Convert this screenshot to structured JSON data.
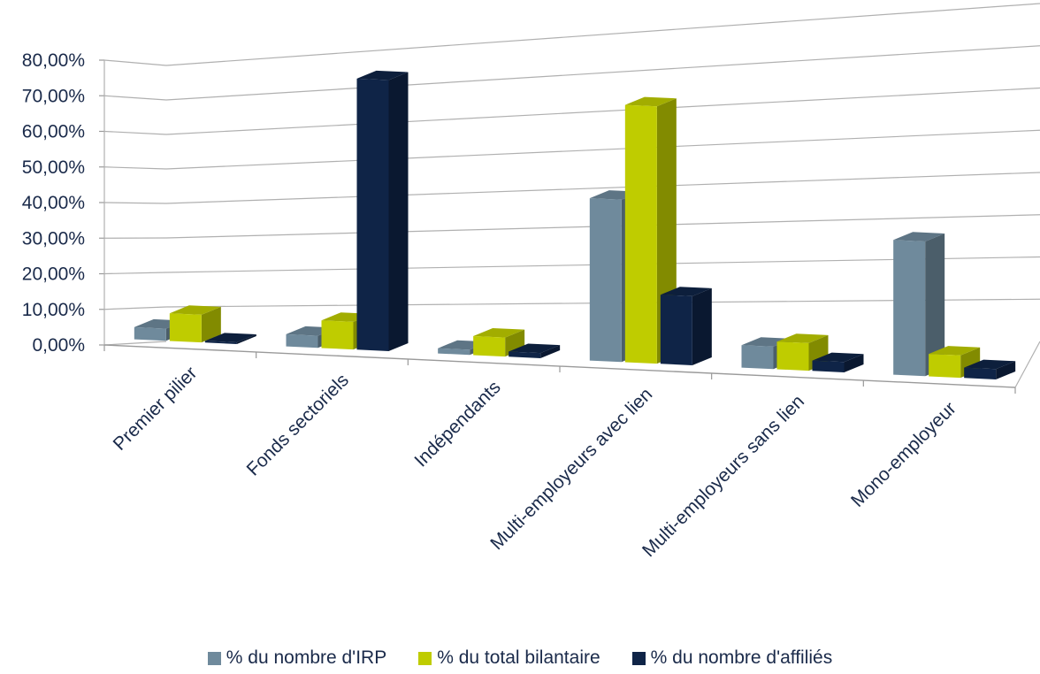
{
  "chart_data": {
    "type": "bar",
    "categories": [
      "Premier pilier",
      "Fonds sectoriels",
      "Indépendants",
      "Multi-employeurs avec lien",
      "Multi-employeurs sans lien",
      "Mono-employeur"
    ],
    "series": [
      {
        "name": "% du nombre d'IRP",
        "color": "#6f8a9c",
        "values": [
          3.5,
          3.5,
          1.5,
          47.0,
          6.5,
          39.0
        ]
      },
      {
        "name": "% du total bilantaire",
        "color": "#bfcc00",
        "values": [
          8.0,
          8.0,
          5.5,
          74.5,
          8.0,
          6.5
        ]
      },
      {
        "name": "% du nombre d'affiliés",
        "color": "#0f2447",
        "values": [
          0.5,
          78.5,
          1.5,
          20.0,
          3.0,
          3.0
        ]
      }
    ],
    "yticks": [
      "0,00%",
      "10,00%",
      "20,00%",
      "30,00%",
      "40,00%",
      "50,00%",
      "60,00%",
      "70,00%",
      "80,00%"
    ],
    "ylim": [
      0,
      80
    ],
    "grid": true,
    "legend_position": "bottom"
  }
}
